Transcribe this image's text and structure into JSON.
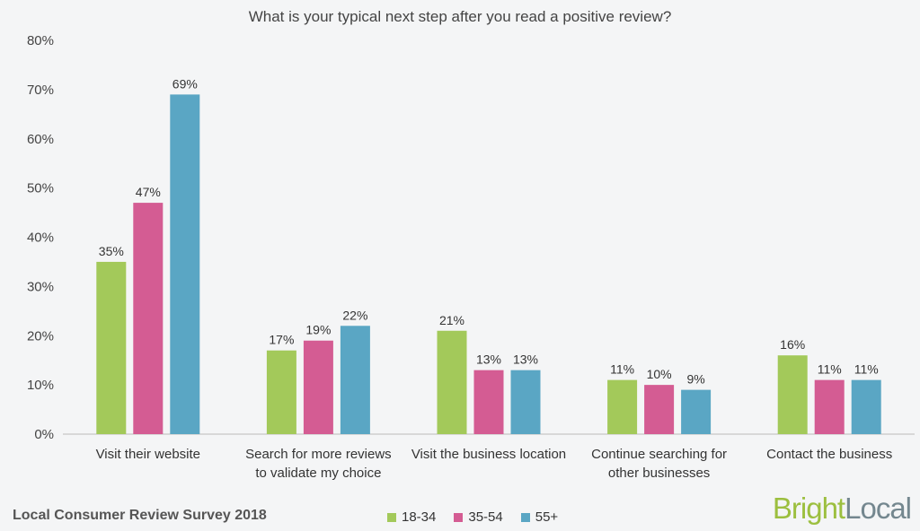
{
  "chart_data": {
    "type": "bar",
    "title": "What is your typical next step after you read a positive review?",
    "categories": [
      [
        "Visit their website"
      ],
      [
        "Search for more reviews",
        "to validate my choice"
      ],
      [
        "Visit the business location"
      ],
      [
        "Continue searching for",
        "other businesses"
      ],
      [
        "Contact the business"
      ]
    ],
    "series": [
      {
        "name": "18-34",
        "color": "#a3c95a",
        "values": [
          35,
          17,
          21,
          11,
          16
        ]
      },
      {
        "name": "35-54",
        "color": "#d45c93",
        "values": [
          47,
          19,
          13,
          10,
          11
        ]
      },
      {
        "name": "55+",
        "color": "#5aa6c4",
        "values": [
          69,
          22,
          13,
          9,
          11
        ]
      }
    ],
    "data_labels": [
      [
        "35%",
        "17%",
        "21%",
        "11%",
        "16%"
      ],
      [
        "47%",
        "19%",
        "13%",
        "10%",
        "11%"
      ],
      [
        "69%",
        "22%",
        "13%",
        "9%",
        "11%"
      ]
    ],
    "ylim": [
      0,
      80
    ],
    "yticks": [
      "0%",
      "10%",
      "20%",
      "30%",
      "40%",
      "50%",
      "60%",
      "70%",
      "80%"
    ],
    "grid": false,
    "legend_position": "bottom-center"
  },
  "footer": {
    "source": "Local Consumer Review Survey 2018",
    "brand_part1": "Bright",
    "brand_part2": "Local"
  },
  "legend": {
    "items": [
      "18-34",
      "35-54",
      "55+"
    ]
  }
}
